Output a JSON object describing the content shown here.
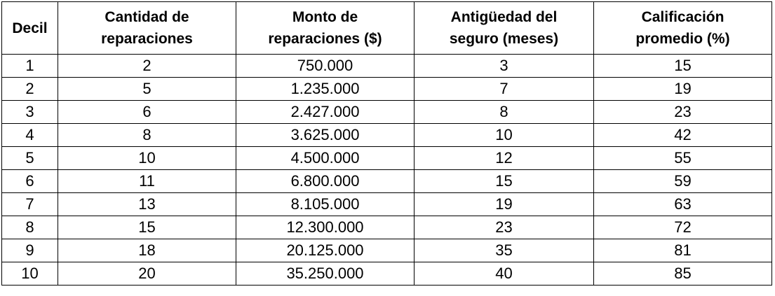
{
  "table": {
    "headers": [
      [
        "Decil"
      ],
      [
        "Cantidad de",
        "reparaciones"
      ],
      [
        "Monto de",
        "reparaciones ($)"
      ],
      [
        "Antigüedad del",
        "seguro (meses)"
      ],
      [
        "Calificación",
        "promedio (%)"
      ]
    ],
    "rows": [
      [
        "1",
        "2",
        "750.000",
        "3",
        "15"
      ],
      [
        "2",
        "5",
        "1.235.000",
        "7",
        "19"
      ],
      [
        "3",
        "6",
        "2.427.000",
        "8",
        "23"
      ],
      [
        "4",
        "8",
        "3.625.000",
        "10",
        "42"
      ],
      [
        "5",
        "10",
        "4.500.000",
        "12",
        "55"
      ],
      [
        "6",
        "11",
        "6.800.000",
        "15",
        "59"
      ],
      [
        "7",
        "13",
        "8.105.000",
        "19",
        "63"
      ],
      [
        "8",
        "15",
        "12.300.000",
        "23",
        "72"
      ],
      [
        "9",
        "18",
        "20.125.000",
        "35",
        "81"
      ],
      [
        "10",
        "20",
        "35.250.000",
        "40",
        "85"
      ]
    ]
  }
}
